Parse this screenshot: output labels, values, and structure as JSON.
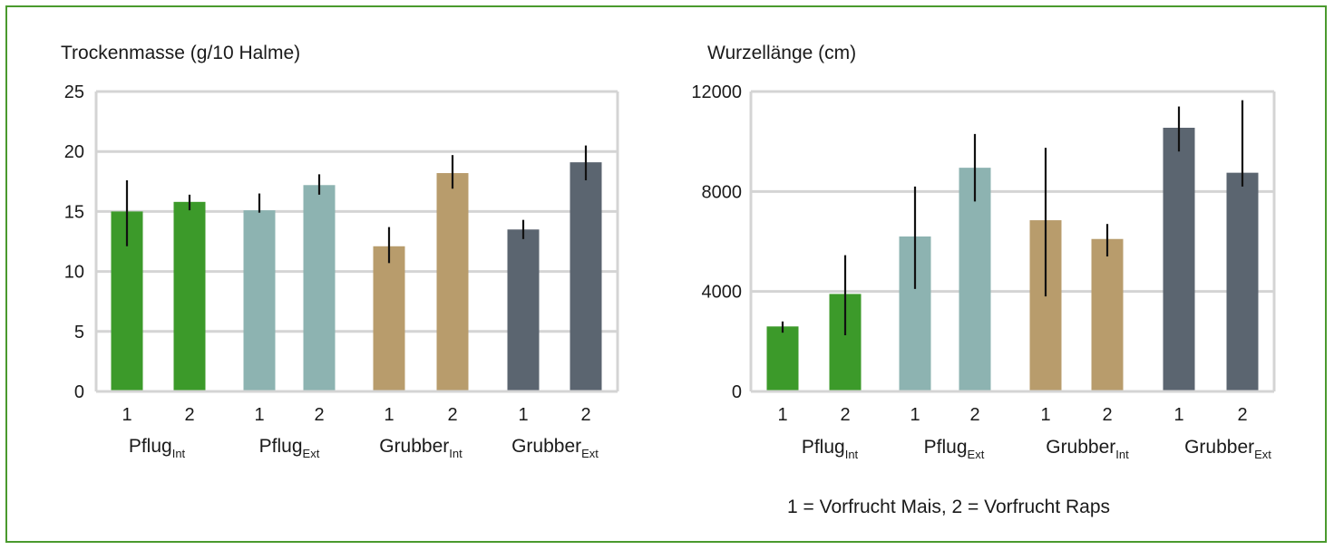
{
  "colors": {
    "frame": "#4a9a2e",
    "grid": "#d4d4d4",
    "error_bar": "#111111",
    "series": [
      "#3c9a2a",
      "#8db3b1",
      "#b89c6c",
      "#5b6570"
    ]
  },
  "footnote": "1 = Vorfrucht Mais, 2 = Vorfrucht Raps",
  "chart_data": [
    {
      "type": "bar",
      "title": "Trockenmasse (g/10 Halme)",
      "ylim": [
        0,
        25
      ],
      "yticks": [
        0,
        5,
        10,
        15,
        20,
        25
      ],
      "ytick_labels": [
        "0",
        "5",
        "10",
        "15",
        "20",
        "25"
      ],
      "grid": true,
      "categories": [
        "1",
        "2",
        "1",
        "2",
        "1",
        "2",
        "1",
        "2"
      ],
      "groups": [
        {
          "name": "Pflug",
          "sub": "Int"
        },
        {
          "name": "Pflug",
          "sub": "Ext"
        },
        {
          "name": "Grubber",
          "sub": "Int"
        },
        {
          "name": "Grubber",
          "sub": "Ext"
        }
      ],
      "values": [
        15.0,
        15.8,
        15.1,
        17.2,
        12.1,
        18.2,
        13.5,
        19.1
      ],
      "error_low": [
        12.1,
        15.1,
        14.9,
        16.4,
        10.7,
        16.9,
        12.7,
        17.6
      ],
      "error_high": [
        17.6,
        16.4,
        16.5,
        18.1,
        13.7,
        19.7,
        14.3,
        20.5
      ],
      "color_index": [
        0,
        0,
        1,
        1,
        2,
        2,
        3,
        3
      ]
    },
    {
      "type": "bar",
      "title": "Wurzellänge (cm)",
      "ylim": [
        0,
        12000
      ],
      "yticks": [
        0,
        4000,
        8000,
        12000
      ],
      "ytick_labels": [
        "0",
        "4000",
        "8000",
        "12000"
      ],
      "grid": true,
      "categories": [
        "1",
        "2",
        "1",
        "2",
        "1",
        "2",
        "1",
        "2"
      ],
      "groups": [
        {
          "name": "Pflug",
          "sub": "Int"
        },
        {
          "name": "Pflug",
          "sub": "Ext"
        },
        {
          "name": "Grubber",
          "sub": "Int"
        },
        {
          "name": "Grubber",
          "sub": "Ext"
        }
      ],
      "values": [
        2600,
        3900,
        6200,
        8950,
        6850,
        6100,
        10550,
        8750
      ],
      "error_low": [
        2350,
        2250,
        4100,
        7600,
        3800,
        5400,
        9600,
        8200
      ],
      "error_high": [
        2800,
        5450,
        8200,
        10300,
        9750,
        6700,
        11400,
        11650
      ],
      "color_index": [
        0,
        0,
        1,
        1,
        2,
        2,
        3,
        3
      ]
    }
  ]
}
